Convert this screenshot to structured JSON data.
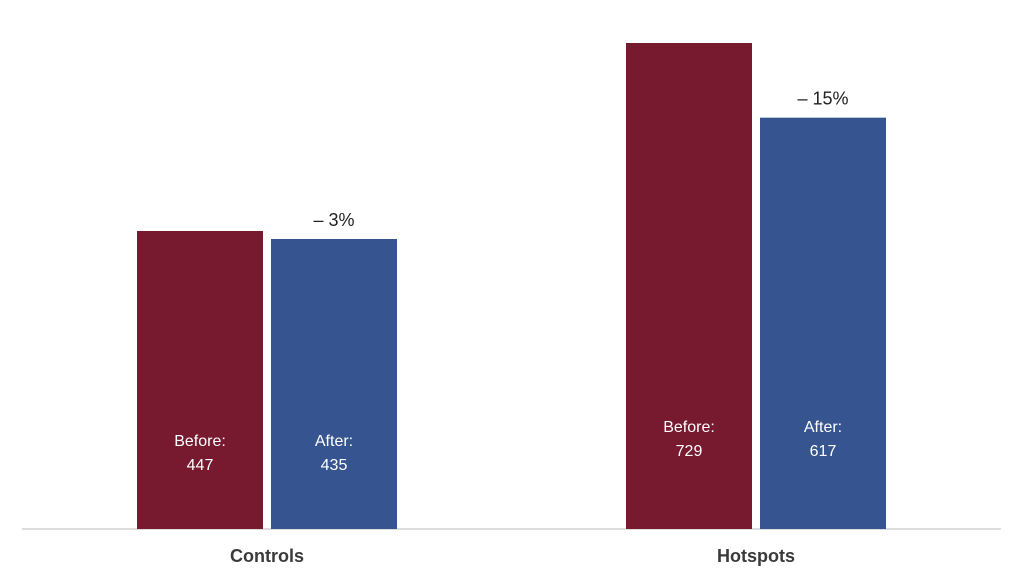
{
  "chart_data": {
    "type": "bar",
    "categories": [
      "Controls",
      "Hotspots"
    ],
    "series": [
      {
        "values": [
          447,
          729
        ],
        "label_prefix": "Before:",
        "color": "#771a2f"
      },
      {
        "values": [
          435,
          617
        ],
        "label_prefix": "After:",
        "color": "#355490"
      }
    ],
    "change_labels": [
      "– 3%",
      "– 15%"
    ],
    "ylim": [
      0,
      750
    ],
    "grid": false,
    "legend": "none",
    "title": "",
    "xlabel": "",
    "ylabel": ""
  }
}
